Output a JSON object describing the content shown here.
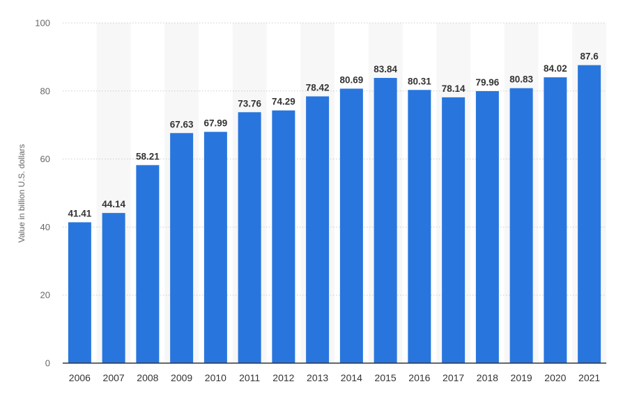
{
  "chart_data": {
    "type": "bar",
    "categories": [
      "2006",
      "2007",
      "2008",
      "2009",
      "2010",
      "2011",
      "2012",
      "2013",
      "2014",
      "2015",
      "2016",
      "2017",
      "2018",
      "2019",
      "2020",
      "2021"
    ],
    "values": [
      41.41,
      44.14,
      58.21,
      67.63,
      67.99,
      73.76,
      74.29,
      78.42,
      80.69,
      83.84,
      80.31,
      78.14,
      79.96,
      80.83,
      84.02,
      87.6
    ],
    "value_labels": [
      "41.41",
      "44.14",
      "58.21",
      "67.63",
      "67.99",
      "73.76",
      "74.29",
      "78.42",
      "80.69",
      "83.84",
      "80.31",
      "78.14",
      "79.96",
      "80.83",
      "84.02",
      "87.6"
    ],
    "title": "",
    "xlabel": "",
    "ylabel": "Value in billion U.S. dollars",
    "ylim": [
      0,
      100
    ],
    "yticks": [
      "0",
      "20",
      "40",
      "60",
      "80",
      "100"
    ],
    "grid": true,
    "legend": "none",
    "colors": {
      "bar": "#2876dd",
      "band": "#f7f7f7",
      "grid": "#cccccc",
      "axis": "#333333"
    }
  }
}
